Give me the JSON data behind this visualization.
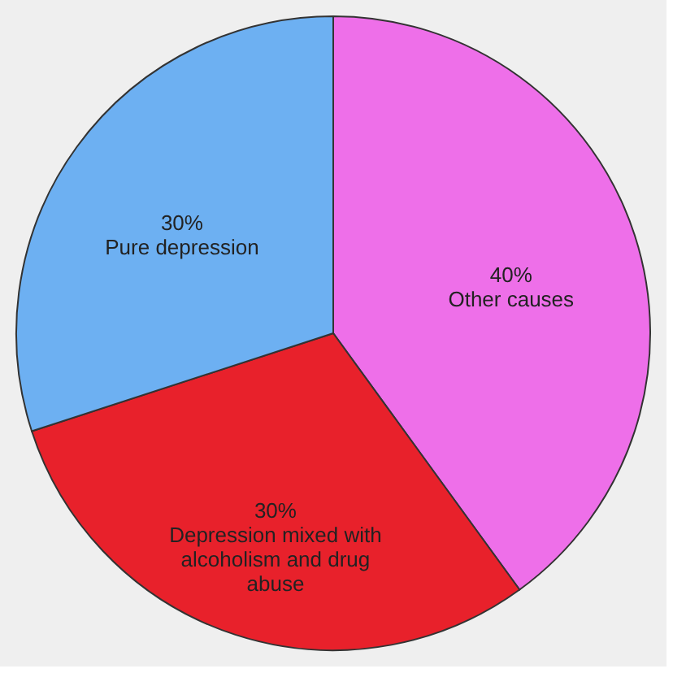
{
  "chart_data": {
    "type": "pie",
    "categories": [
      "Other causes",
      "Depression mixed with alcoholism and drug abuse",
      "Pure depression"
    ],
    "values": [
      40,
      30,
      30
    ],
    "value_labels": [
      "40%",
      "30%",
      "30%"
    ],
    "colors": [
      "#ee6fe9",
      "#e8212b",
      "#6db0f2"
    ],
    "legend": false
  }
}
